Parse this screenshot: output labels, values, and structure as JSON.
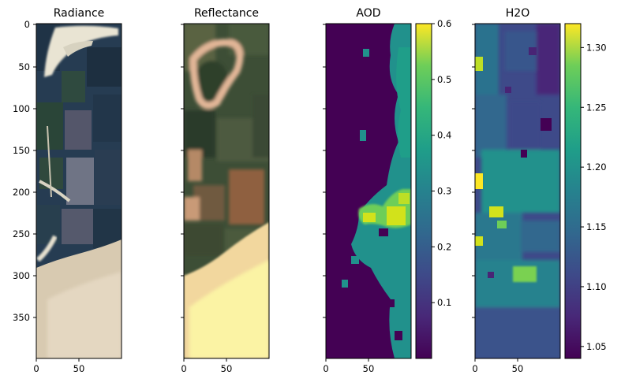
{
  "chart_data": [
    {
      "type": "heatmap",
      "title": "Radiance",
      "xticks": [
        0,
        50
      ],
      "yticks": [
        0,
        50,
        100,
        150,
        200,
        250,
        300,
        350
      ],
      "xlim": [
        0,
        100
      ],
      "ylim": [
        400,
        0
      ],
      "show_ytick_labels": true,
      "colors": {
        "field_dark": "#1f3346",
        "field_green": "#2e4a3c",
        "soil_pale": "#e8e3d2",
        "sand": "#d9cbb2",
        "field_gray": "#6f7485"
      }
    },
    {
      "type": "heatmap",
      "title": "Reflectance",
      "xticks": [
        0,
        50
      ],
      "yticks": [
        0,
        50,
        100,
        150,
        200,
        250,
        300,
        350
      ],
      "xlim": [
        0,
        100
      ],
      "ylim": [
        400,
        0
      ],
      "show_ytick_labels": false,
      "colors": {
        "veg_dark": "#2f3f2c",
        "veg_mid": "#4e5d3f",
        "soil_brown": "#8f6040",
        "soil_tan": "#d7a983",
        "sand_bright": "#fbf3a4"
      }
    },
    {
      "type": "heatmap",
      "title": "AOD",
      "xticks": [
        0,
        50
      ],
      "yticks": [
        0,
        50,
        100,
        150,
        200,
        250,
        300,
        350
      ],
      "xlim": [
        0,
        100
      ],
      "ylim": [
        400,
        0
      ],
      "show_ytick_labels": false,
      "colormap": "viridis",
      "colorbar": {
        "min": 0.0,
        "max": 0.6,
        "ticks": [
          0.1,
          0.2,
          0.3,
          0.4,
          0.5,
          0.6
        ],
        "tick_labels": [
          "0.1",
          "0.2",
          "0.3",
          "0.4",
          "0.5",
          "0.6"
        ]
      }
    },
    {
      "type": "heatmap",
      "title": "H2O",
      "xticks": [
        0,
        50
      ],
      "yticks": [
        0,
        50,
        100,
        150,
        200,
        250,
        300,
        350
      ],
      "xlim": [
        0,
        100
      ],
      "ylim": [
        400,
        0
      ],
      "show_ytick_labels": false,
      "colormap": "viridis",
      "colorbar": {
        "min": 1.04,
        "max": 1.32,
        "ticks": [
          1.05,
          1.1,
          1.15,
          1.2,
          1.25,
          1.3
        ],
        "tick_labels": [
          "1.05",
          "1.10",
          "1.15",
          "1.20",
          "1.25",
          "1.30"
        ]
      }
    }
  ]
}
